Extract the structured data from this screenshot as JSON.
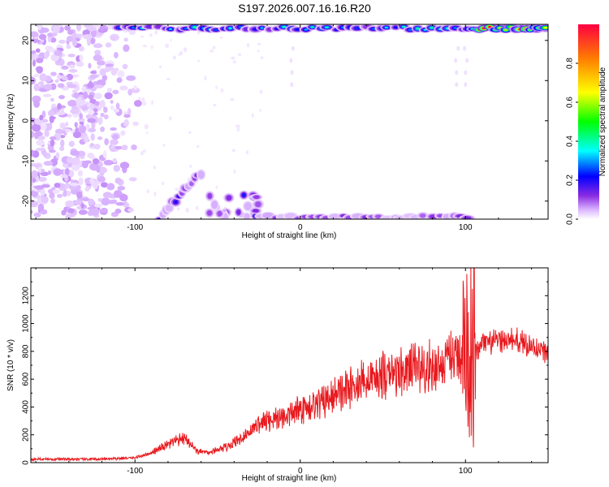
{
  "title": "S197.2026.007.16.16.R20",
  "chart_data": [
    {
      "type": "heatmap",
      "name": "spectrogram",
      "xlabel": "Height of straight line (km)",
      "ylabel": "Frequency (Hz)",
      "xlim": [
        -163,
        150
      ],
      "ylim": [
        -24.5,
        24
      ],
      "x_ticks": [
        -100,
        0,
        100
      ],
      "y_ticks": [
        -20,
        -10,
        0,
        10,
        20
      ],
      "colorbar": {
        "label": "Normalized spectral amplitude",
        "range": [
          0,
          1
        ],
        "ticks": [
          0.0,
          0.2,
          0.4,
          0.6,
          0.8
        ],
        "colors": [
          "#ffffff",
          "#d9b3ff",
          "#8a2be2",
          "#0000ff",
          "#00ffff",
          "#00ff00",
          "#ffff00",
          "#ff8000",
          "#ff0040"
        ]
      },
      "features": [
        {
          "name": "scattered noise blobs",
          "x_range": [
            -163,
            -95
          ],
          "freq_range": [
            -24,
            24
          ],
          "amplitude": 0.1
        },
        {
          "name": "high-frequency band",
          "x_range": [
            -110,
            150
          ],
          "freq": 23,
          "amplitude": 0.5
        },
        {
          "name": "strong peak band",
          "x_range": [
            105,
            148
          ],
          "freq": 23,
          "amplitude": 0.95
        },
        {
          "name": "low-frequency diagonal",
          "x_range": [
            -85,
            -60
          ],
          "freq_range": [
            -24,
            -13
          ],
          "amplitude": 0.3
        },
        {
          "name": "low-frequency cluster",
          "x_range": [
            -55,
            -25
          ],
          "freq_range": [
            -24,
            -18
          ],
          "amplitude": 0.3
        },
        {
          "name": "low-frequency band",
          "x_range": [
            -25,
            105
          ],
          "freq": -24,
          "amplitude": 0.3
        }
      ]
    },
    {
      "type": "line",
      "name": "snr",
      "xlabel": "Height of straight line (km)",
      "ylabel": "SNR (10 * v/v)",
      "xlim": [
        -163,
        150
      ],
      "ylim": [
        0,
        1400
      ],
      "x_ticks": [
        -100,
        0,
        100
      ],
      "y_ticks": [
        0,
        200,
        400,
        600,
        800,
        1000,
        1200
      ],
      "color": "#e8191e",
      "anchor_x": [
        -163,
        -120,
        -100,
        -90,
        -80,
        -70,
        -62,
        -55,
        -45,
        -35,
        -25,
        -15,
        -5,
        0,
        10,
        20,
        30,
        40,
        50,
        60,
        70,
        80,
        90,
        95,
        100,
        102,
        104,
        106,
        110,
        120,
        130,
        140,
        150
      ],
      "anchor_y": [
        25,
        25,
        35,
        70,
        130,
        180,
        80,
        70,
        110,
        180,
        280,
        320,
        350,
        380,
        420,
        470,
        540,
        600,
        620,
        650,
        690,
        680,
        720,
        760,
        800,
        700,
        1000,
        780,
        850,
        870,
        880,
        840,
        790
      ]
    }
  ]
}
